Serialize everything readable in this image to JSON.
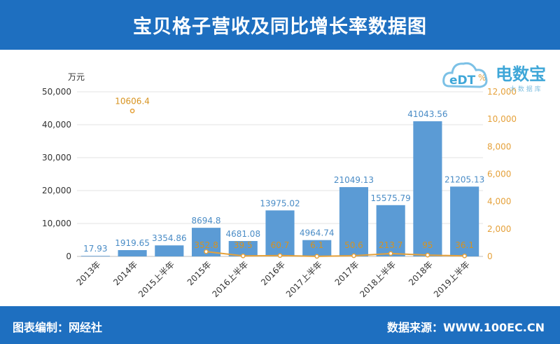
{
  "header": {
    "title": "宝贝格子营收及同比增长率数据图"
  },
  "footer": {
    "left": "图表编制：网经社",
    "right": "数据来源：WWW.100EC.CN"
  },
  "logo": {
    "name": "电数宝",
    "sub": "大 数 据 库"
  },
  "colors": {
    "header_bg": "#1e6fc0",
    "bar": "#5b9bd5",
    "line": "#e5a13a",
    "bar_label": "#4a8cc6",
    "line_label": "#d7931f"
  },
  "chart_data": {
    "type": "bar",
    "left_unit": "万元",
    "right_unit": "%",
    "categories": [
      "2013年",
      "2014年",
      "2015上半年",
      "2015年",
      "2016上半年",
      "2016年",
      "2017上半年",
      "2017年",
      "2018上半年",
      "2018年",
      "2019上半年"
    ],
    "series": [
      {
        "axis": "left",
        "type": "bar",
        "values": [
          17.93,
          1919.65,
          3354.86,
          8694.8,
          4681.08,
          13975.02,
          4964.74,
          21049.13,
          15575.79,
          41043.56,
          21205.13
        ],
        "labels": [
          "17.93",
          "1919.65",
          "3354.86",
          "8694.8",
          "4681.08",
          "13975.02",
          "4964.74",
          "21049.13",
          "15575.79",
          "41043.56",
          "21205.13"
        ]
      },
      {
        "axis": "right",
        "type": "line",
        "values": [
          null,
          10606.4,
          null,
          352.8,
          39.5,
          60.7,
          6.1,
          50.6,
          213.7,
          95,
          36.1
        ],
        "labels": [
          "",
          "10606.4",
          "",
          "352.8",
          "39.5",
          "60.7",
          "6.1",
          "50.6",
          "213.7",
          "95",
          "36.1"
        ]
      }
    ],
    "y_left": {
      "min": 0,
      "max": 50000,
      "ticks": [
        "0",
        "10,000",
        "20,000",
        "30,000",
        "40,000",
        "50,000"
      ]
    },
    "y_right": {
      "min": 0,
      "max": 12000,
      "ticks": [
        "0",
        "2,000",
        "4,000",
        "6,000",
        "8,000",
        "10,000",
        "12,000"
      ]
    },
    "grid": true
  }
}
